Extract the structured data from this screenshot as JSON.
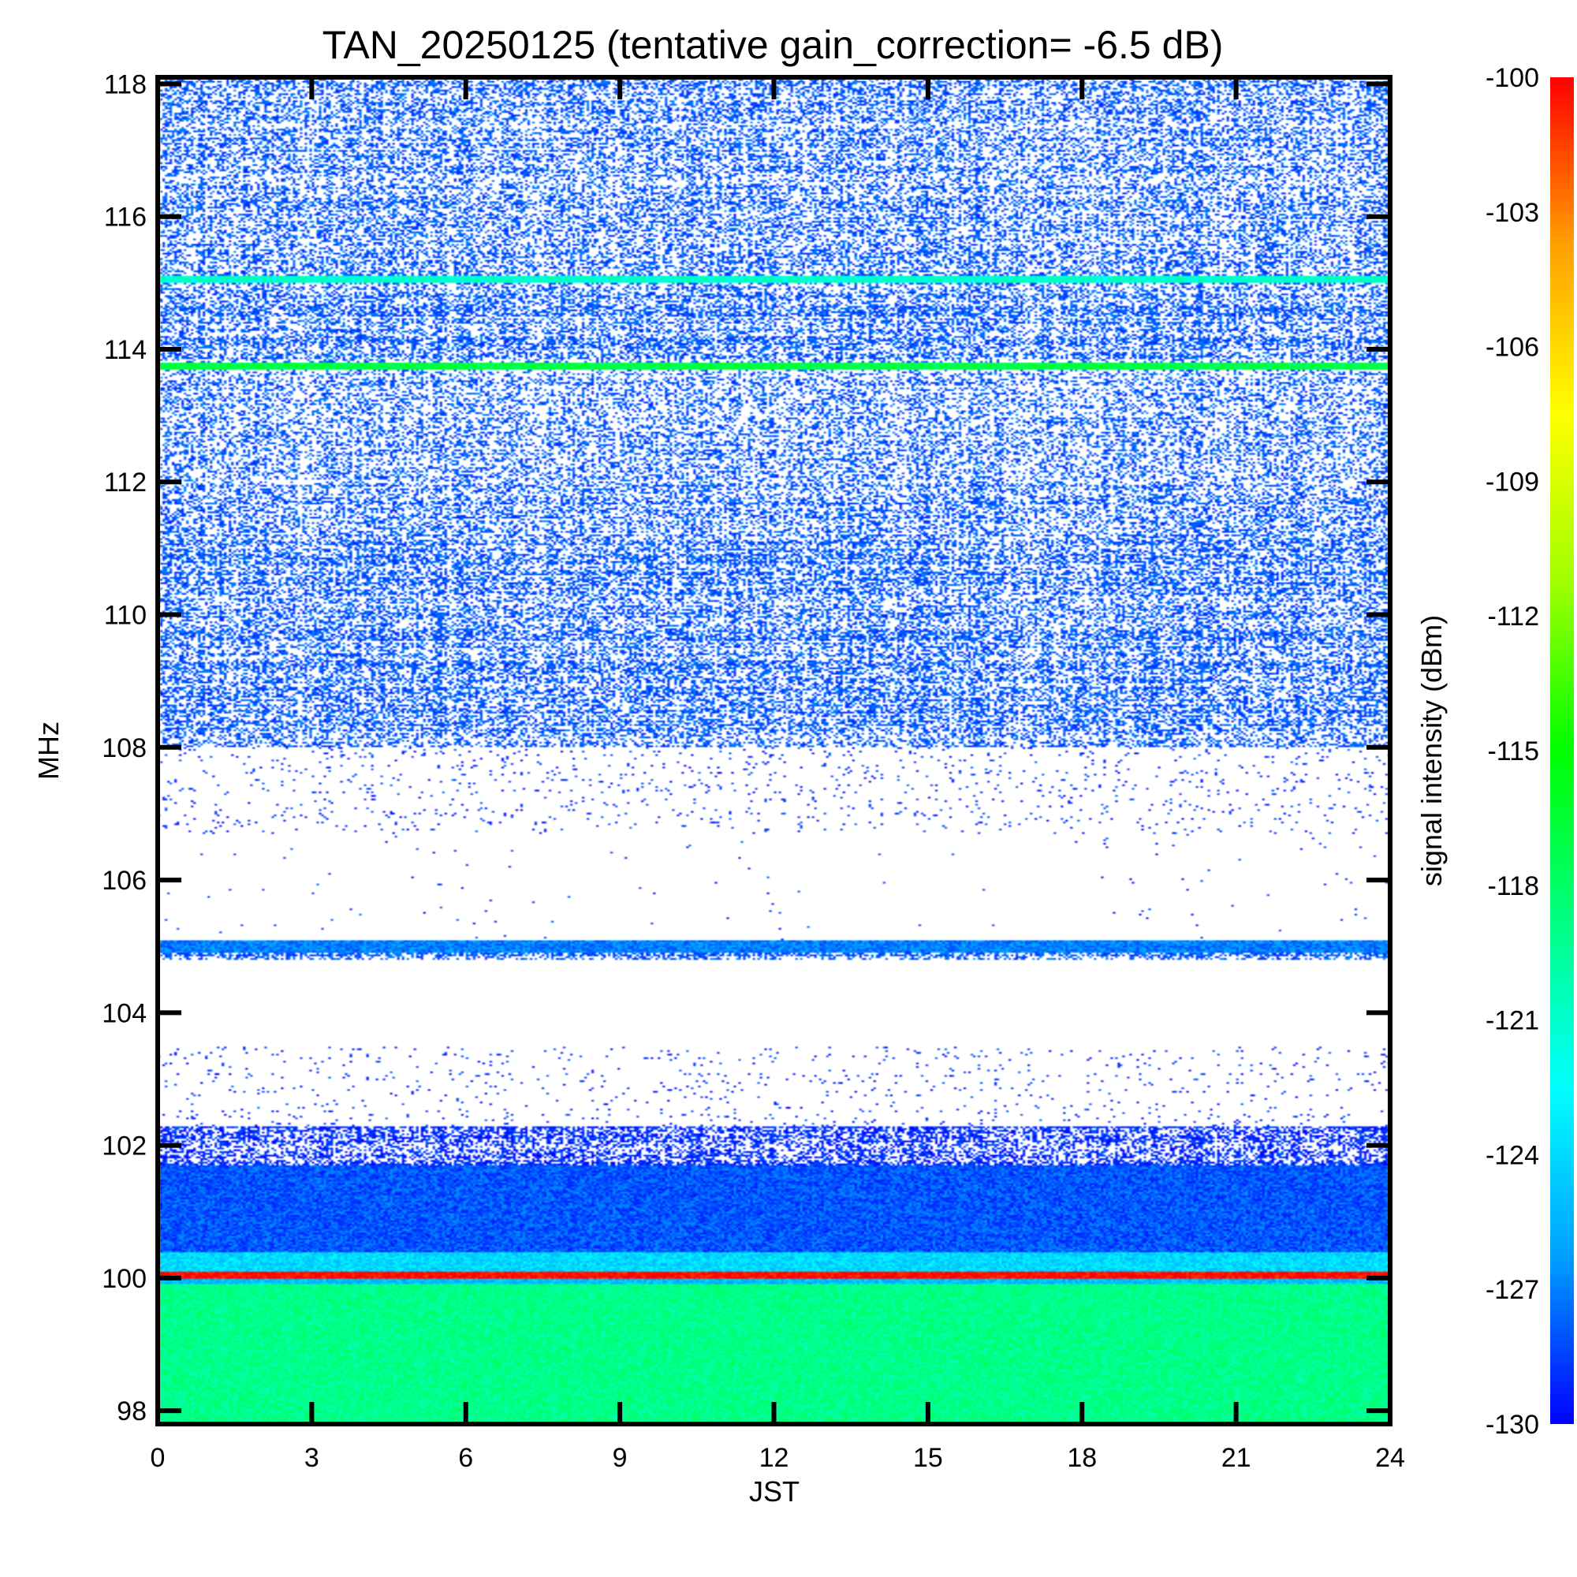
{
  "chart_data": {
    "type": "heatmap",
    "title": "TAN_20250125 (tentative gain_correction= -6.5 dB)",
    "xlabel": "JST",
    "ylabel": "MHz",
    "colorbar_label": "signal intensity (dBm)",
    "xlim": [
      0,
      24
    ],
    "ylim": [
      97.8,
      118.1
    ],
    "x_ticks": [
      0,
      3,
      6,
      9,
      12,
      15,
      18,
      21,
      24
    ],
    "y_ticks": [
      98,
      100,
      102,
      104,
      106,
      108,
      110,
      112,
      114,
      116,
      118
    ],
    "colorbar_range": [
      -130,
      -100
    ],
    "colorbar_ticks": [
      -100,
      -103,
      -106,
      -109,
      -112,
      -115,
      -118,
      -121,
      -124,
      -127,
      -130
    ],
    "colormap": [
      "#0000ff",
      "#00a0ff",
      "#00ffff",
      "#00ff80",
      "#00ff00",
      "#a0ff00",
      "#ffff00",
      "#ffa000",
      "#ff0000"
    ],
    "grid": false,
    "frequency_bands": [
      {
        "from": 97.8,
        "to": 99.9,
        "dBm": -119,
        "density": 1.0
      },
      {
        "from": 99.9,
        "to": 100.0,
        "dBm": -125,
        "density": 1.0
      },
      {
        "from": 100.0,
        "to": 100.1,
        "dBm": -100,
        "density": 1.0
      },
      {
        "from": 100.1,
        "to": 100.4,
        "dBm": -124,
        "density": 1.0
      },
      {
        "from": 100.4,
        "to": 101.7,
        "dBm": -128,
        "density": 1.0
      },
      {
        "from": 101.7,
        "to": 102.3,
        "dBm": -129,
        "density": 0.55
      },
      {
        "from": 102.3,
        "to": 103.5,
        "dBm": -129,
        "density": 0.03
      },
      {
        "from": 103.5,
        "to": 104.8,
        "dBm": -129,
        "density": 0.0
      },
      {
        "from": 104.8,
        "to": 104.9,
        "dBm": -128,
        "density": 0.55
      },
      {
        "from": 104.9,
        "to": 105.1,
        "dBm": -127,
        "density": 1.0
      },
      {
        "from": 105.1,
        "to": 106.7,
        "dBm": -129,
        "density": 0.003
      },
      {
        "from": 106.7,
        "to": 108.0,
        "dBm": -129,
        "density": 0.04
      },
      {
        "from": 108.0,
        "to": 112.0,
        "dBm": -128,
        "density": 0.45
      },
      {
        "from": 112.0,
        "to": 113.7,
        "dBm": -128,
        "density": 0.33
      },
      {
        "from": 113.7,
        "to": 113.8,
        "dBm": -117,
        "density": 1.0
      },
      {
        "from": 113.8,
        "to": 115.0,
        "dBm": -128,
        "density": 0.45
      },
      {
        "from": 115.0,
        "to": 115.1,
        "dBm": -121,
        "density": 1.0
      },
      {
        "from": 115.1,
        "to": 118.1,
        "dBm": -128,
        "density": 0.4
      }
    ]
  }
}
